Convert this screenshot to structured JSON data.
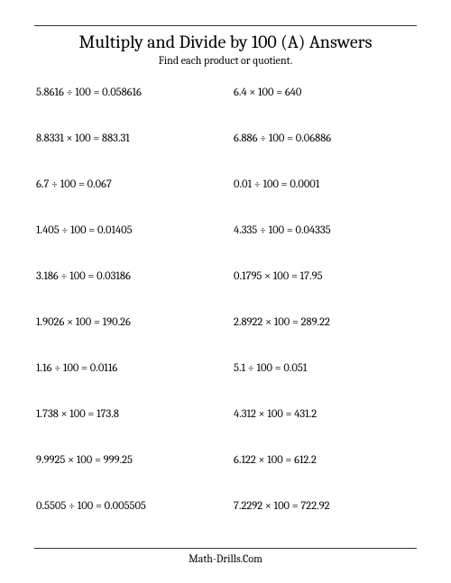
{
  "header": {
    "title": "Multiply and Divide by 100 (A) Answers",
    "subtitle": "Find each product or quotient."
  },
  "problems": {
    "left": [
      "5.8616 ÷ 100 = 0.058616",
      "8.8331 × 100 = 883.31",
      "6.7 ÷ 100 = 0.067",
      "1.405 ÷ 100 = 0.01405",
      "3.186 ÷ 100 = 0.03186",
      "1.9026 × 100 = 190.26",
      "1.16 ÷ 100 = 0.0116",
      "1.738 × 100 = 173.8",
      "9.9925 × 100 = 999.25",
      "0.5505 ÷ 100 = 0.005505"
    ],
    "right": [
      "6.4 × 100 = 640",
      "6.886 ÷ 100 = 0.06886",
      "0.01 ÷ 100 = 0.0001",
      "4.335 ÷ 100 = 0.04335",
      "0.1795 × 100 = 17.95",
      "2.8922 × 100 = 289.22",
      "5.1 ÷ 100 = 0.051",
      "4.312 × 100 = 431.2",
      "6.122 × 100 = 612.2",
      "7.2292 × 100 = 722.92"
    ]
  },
  "footer": {
    "text": "Math-Drills.Com"
  }
}
